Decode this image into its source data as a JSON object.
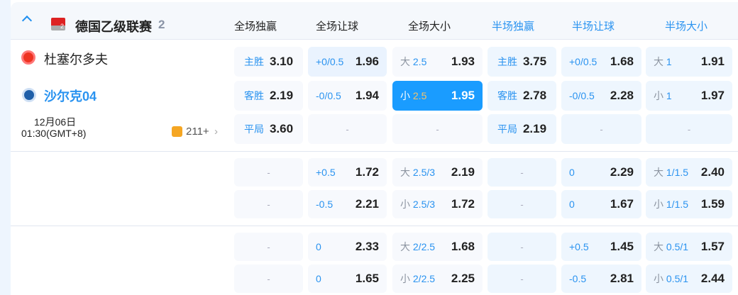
{
  "league": {
    "name": "德国乙级联赛",
    "count": "2"
  },
  "columns": [
    {
      "label": "全场独赢",
      "half": false
    },
    {
      "label": "全场让球",
      "half": false
    },
    {
      "label": "全场大小",
      "half": false
    },
    {
      "label": "半场独赢",
      "half": true
    },
    {
      "label": "半场让球",
      "half": true
    },
    {
      "label": "半场大小",
      "half": true
    }
  ],
  "match": {
    "home": "杜塞尔多夫",
    "away": "沙尔克04",
    "date": "12月06日",
    "time": "01:30(GMT+8)",
    "more": "211+"
  },
  "colors": {
    "accent": "#1a9cff",
    "selected_line": "#f5c26b",
    "away_team": "#2a93f0"
  },
  "sections": [
    {
      "rows": [
        [
          {
            "line": "主胜",
            "odds": "3.10"
          },
          {
            "line": "+0/0.5",
            "odds": "1.96",
            "hl": true
          },
          {
            "pre": "大",
            "line": "2.5",
            "odds": "1.93"
          },
          {
            "line": "主胜",
            "odds": "3.75"
          },
          {
            "line": "+0/0.5",
            "odds": "1.68"
          },
          {
            "pre": "大",
            "line": "1",
            "odds": "1.91"
          }
        ],
        [
          {
            "line": "客胜",
            "odds": "2.19"
          },
          {
            "line": "-0/0.5",
            "odds": "1.94"
          },
          {
            "pre": "小",
            "line": "2.5",
            "odds": "1.95",
            "selected": true
          },
          {
            "line": "客胜",
            "odds": "2.78"
          },
          {
            "line": "-0/0.5",
            "odds": "2.28"
          },
          {
            "pre": "小",
            "line": "1",
            "odds": "1.97"
          }
        ],
        [
          {
            "line": "平局",
            "odds": "3.60"
          },
          {
            "empty": "-"
          },
          {
            "empty": "-"
          },
          {
            "line": "平局",
            "odds": "2.19"
          },
          {
            "empty": "-"
          },
          {
            "empty": "-"
          }
        ]
      ]
    },
    {
      "rows": [
        [
          {
            "empty": "-"
          },
          {
            "line": "+0.5",
            "odds": "1.72"
          },
          {
            "pre": "大",
            "line": "2.5/3",
            "odds": "2.19"
          },
          {
            "empty": "-"
          },
          {
            "line": "0",
            "odds": "2.29"
          },
          {
            "pre": "大",
            "line": "1/1.5",
            "odds": "2.40"
          }
        ],
        [
          {
            "empty": "-"
          },
          {
            "line": "-0.5",
            "odds": "2.21"
          },
          {
            "pre": "小",
            "line": "2.5/3",
            "odds": "1.72"
          },
          {
            "empty": "-"
          },
          {
            "line": "0",
            "odds": "1.67"
          },
          {
            "pre": "小",
            "line": "1/1.5",
            "odds": "1.59"
          }
        ]
      ]
    },
    {
      "rows": [
        [
          {
            "empty": "-"
          },
          {
            "line": "0",
            "odds": "2.33"
          },
          {
            "pre": "大",
            "line": "2/2.5",
            "odds": "1.68"
          },
          {
            "empty": "-"
          },
          {
            "line": "+0.5",
            "odds": "1.45"
          },
          {
            "pre": "大",
            "line": "0.5/1",
            "odds": "1.57"
          }
        ],
        [
          {
            "empty": "-"
          },
          {
            "line": "0",
            "odds": "1.65"
          },
          {
            "pre": "小",
            "line": "2/2.5",
            "odds": "2.25"
          },
          {
            "empty": "-"
          },
          {
            "line": "-0.5",
            "odds": "2.81"
          },
          {
            "pre": "小",
            "line": "0.5/1",
            "odds": "2.44"
          }
        ]
      ]
    }
  ]
}
